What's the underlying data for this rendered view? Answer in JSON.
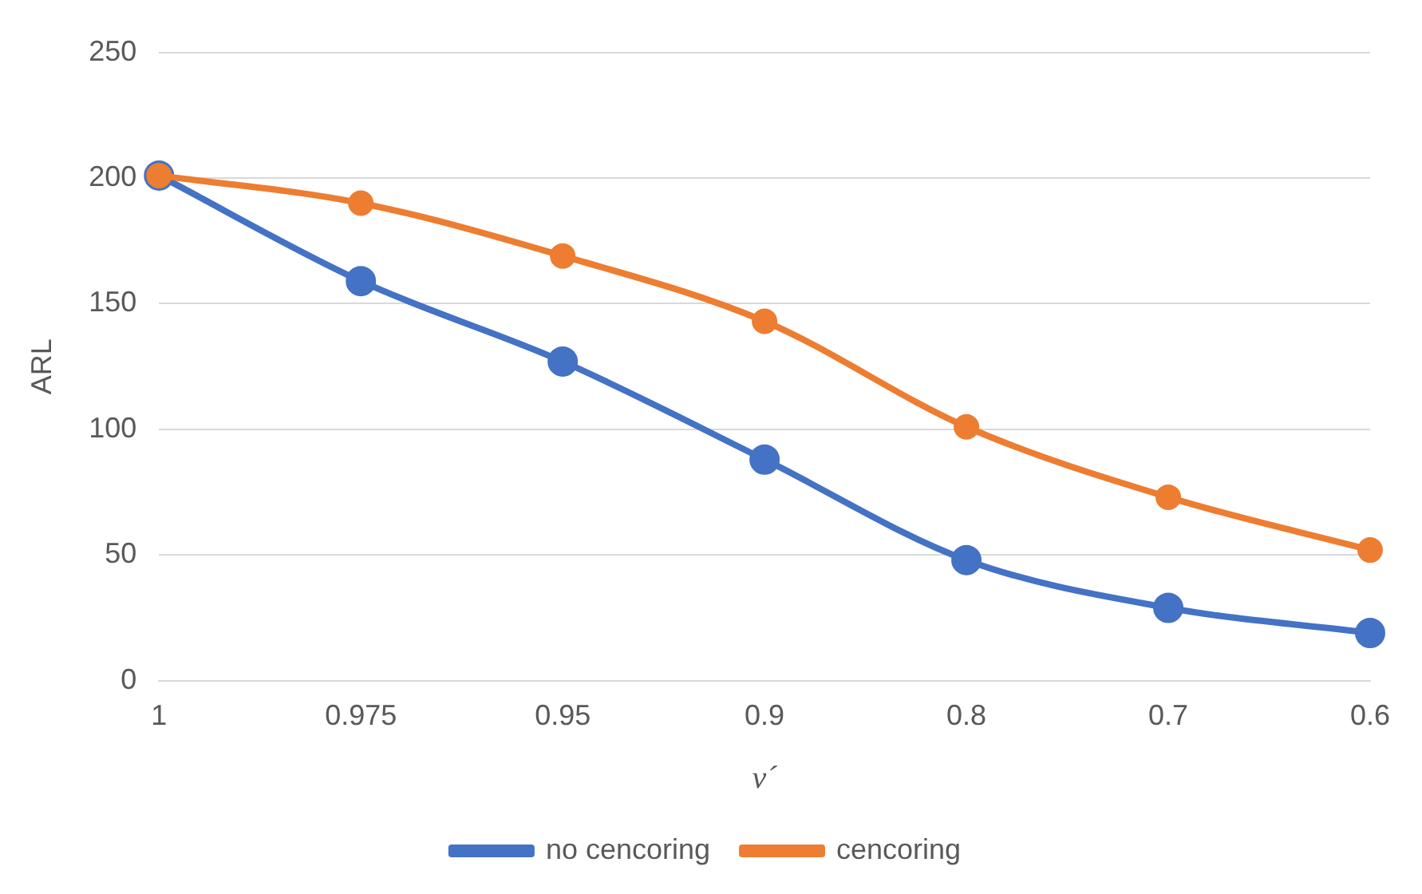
{
  "chart_data": {
    "type": "line",
    "xlabel": "ν´",
    "ylabel": "ARL",
    "categories": [
      "1",
      "0.975",
      "0.95",
      "0.9",
      "0.8",
      "0.7",
      "0.6"
    ],
    "series": [
      {
        "name": "no cencoring",
        "color": "#4472c4",
        "values": [
          201,
          159,
          127,
          88,
          48,
          29,
          19
        ]
      },
      {
        "name": "cencoring",
        "color": "#ed7d31",
        "values": [
          201,
          190,
          169,
          143,
          101,
          73,
          52
        ]
      }
    ],
    "ylim": [
      0,
      250
    ],
    "yticks": [
      0,
      50,
      100,
      150,
      200,
      250
    ],
    "grid": "y",
    "legend": "bottom",
    "marker": "circle",
    "line_style": "solid"
  }
}
